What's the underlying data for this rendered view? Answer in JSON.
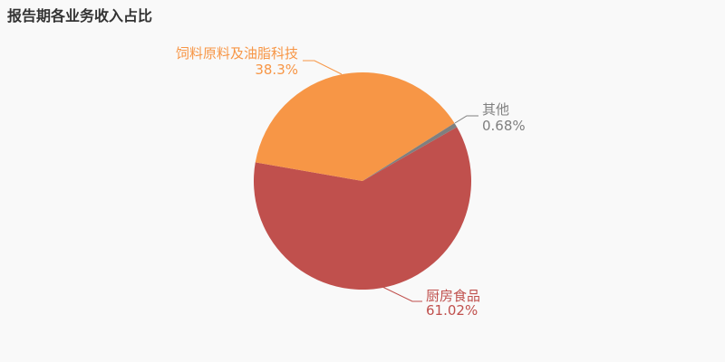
{
  "chart_data": {
    "type": "pie",
    "title": "报告期各业务收入占比",
    "slices": [
      {
        "name": "厨房食品",
        "value": 61.02,
        "label": "61.02%",
        "color": "#c0504d"
      },
      {
        "name": "饲料原料及油脂科技",
        "value": 38.3,
        "label": "38.3%",
        "color": "#f79646"
      },
      {
        "name": "其他",
        "value": 0.68,
        "label": "0.68%",
        "color": "#7f7f7f"
      }
    ],
    "legend": "none"
  }
}
